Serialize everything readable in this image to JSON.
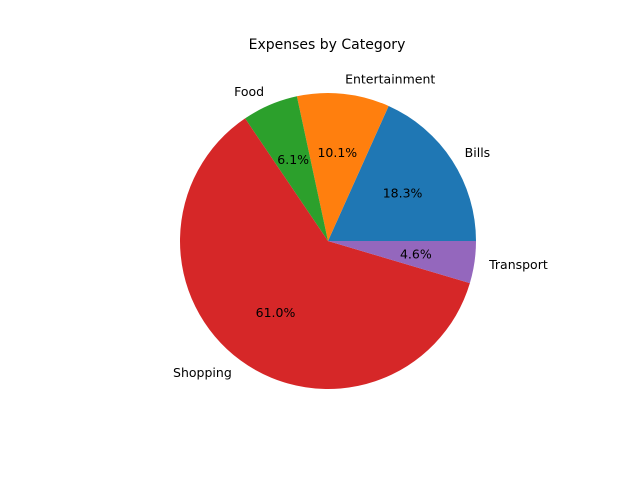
{
  "chart_data": {
    "type": "pie",
    "title": "Expenses by Category",
    "start_angle_deg": 0,
    "direction": "counterclockwise",
    "slices": [
      {
        "label": "Bills",
        "value": 18.3,
        "pct_label": "18.3%",
        "color": "#1f77b4"
      },
      {
        "label": "Entertainment",
        "value": 10.1,
        "pct_label": "10.1%",
        "color": "#ff7f0e"
      },
      {
        "label": "Food",
        "value": 6.1,
        "pct_label": "6.1%",
        "color": "#2ca02c"
      },
      {
        "label": "Shopping",
        "value": 61.0,
        "pct_label": "61.0%",
        "color": "#d62728"
      },
      {
        "label": "Transport",
        "value": 4.6,
        "pct_label": "4.6%",
        "color": "#9467bd"
      }
    ]
  }
}
